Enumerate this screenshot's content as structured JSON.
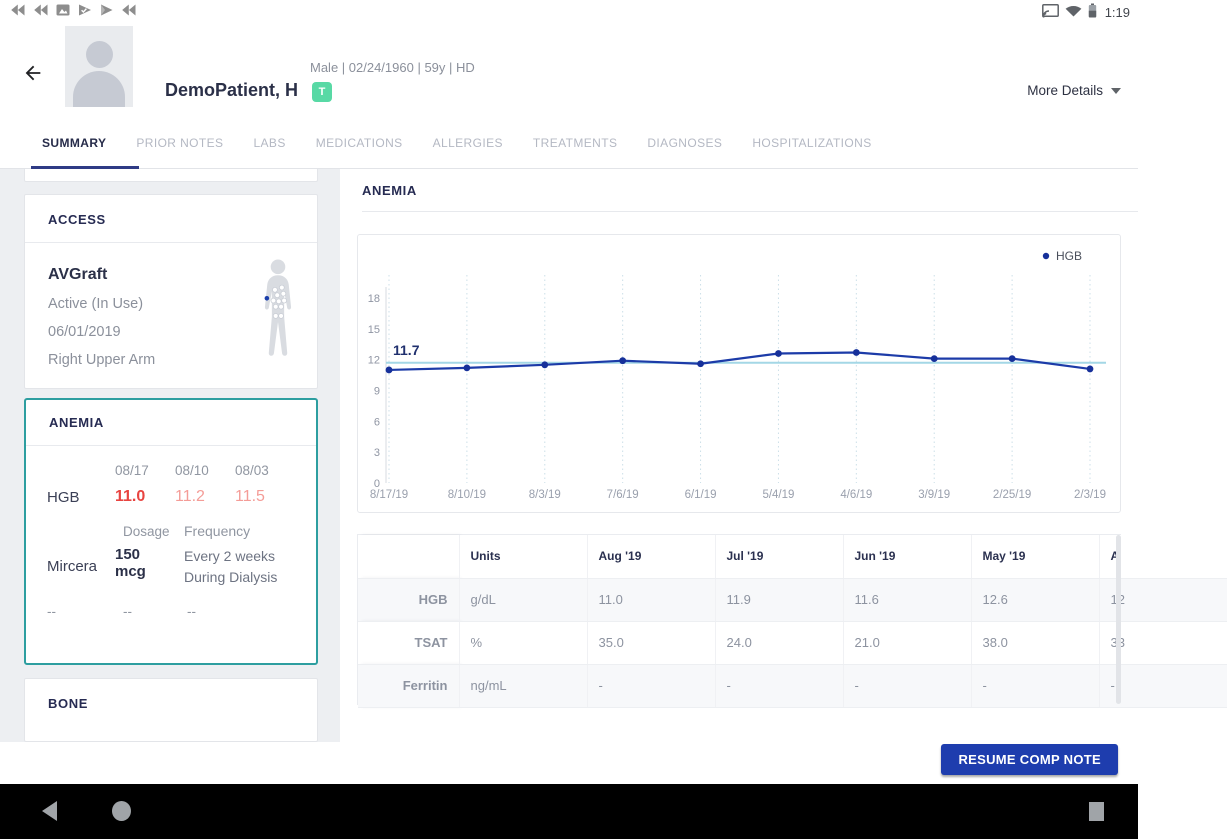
{
  "status_bar": {
    "time": "1:19",
    "left_icons": [
      "rewind-icon",
      "rewind-icon",
      "image-icon",
      "play-check-icon",
      "play-icon",
      "rewind-icon"
    ],
    "right_icons": [
      "cast-icon",
      "wifi-icon",
      "battery-icon"
    ]
  },
  "header": {
    "patient_name": "DemoPatient, H",
    "demographics": "Male | 02/24/1960 | 59y  | HD",
    "badge": "T",
    "more_details_label": "More Details"
  },
  "tabs": [
    "SUMMARY",
    "PRIOR NOTES",
    "LABS",
    "MEDICATIONS",
    "ALLERGIES",
    "TREATMENTS",
    "DIAGNOSES",
    "HOSPITALIZATIONS"
  ],
  "active_tab": "SUMMARY",
  "sidebar": {
    "access": {
      "title": "ACCESS",
      "type": "AVGraft",
      "status": "Active (In Use)",
      "date": "06/01/2019",
      "location": "Right Upper Arm"
    },
    "anemia": {
      "title": "ANEMIA",
      "dates": [
        "08/17",
        "08/10",
        "08/03"
      ],
      "hgb_label": "HGB",
      "hgb_values": [
        "11.0",
        "11.2",
        "11.5"
      ],
      "dosage_label": "Dosage",
      "frequency_label": "Frequency",
      "med_name": "Mircera",
      "med_dosage": "150 mcg",
      "med_frequency": "Every 2 weeks During Dialysis",
      "empty_row": [
        "--",
        "--",
        "--"
      ]
    },
    "bone": {
      "title": "BONE"
    }
  },
  "main": {
    "section_title": "ANEMIA",
    "table": {
      "columns": [
        "",
        "Units",
        "Aug '19",
        "Jul '19",
        "Jun '19",
        "May '19",
        "A"
      ],
      "rows": [
        {
          "label": "HGB",
          "units": "g/dL",
          "values": [
            "11.0",
            "11.9",
            "11.6",
            "12.6",
            "12"
          ],
          "red_flags": [
            true,
            true,
            true,
            false,
            false
          ]
        },
        {
          "label": "TSAT",
          "units": "%",
          "values": [
            "35.0",
            "24.0",
            "21.0",
            "38.0",
            "33"
          ],
          "red_flags": [
            false,
            false,
            false,
            false,
            false
          ]
        },
        {
          "label": "Ferritin",
          "units": "ng/mL",
          "values": [
            "-",
            "-",
            "-",
            "-",
            "-"
          ],
          "red_flags": [
            false,
            false,
            false,
            false,
            false
          ]
        }
      ]
    },
    "resume_button_label": "RESUME COMP NOTE"
  },
  "chart_data": {
    "type": "line",
    "title": "",
    "legend": [
      "HGB"
    ],
    "legend_position": "top-right",
    "x": [
      "8/17/19",
      "8/10/19",
      "8/3/19",
      "7/6/19",
      "6/1/19",
      "5/4/19",
      "4/6/19",
      "3/9/19",
      "2/25/19",
      "2/3/19"
    ],
    "series": [
      {
        "name": "HGB",
        "values": [
          11.0,
          11.2,
          11.5,
          11.9,
          11.6,
          12.6,
          12.7,
          12.1,
          12.1,
          11.1
        ]
      }
    ],
    "reference_line": {
      "value": 11.7,
      "label": "11.7"
    },
    "ylim": [
      0,
      18
    ],
    "yticks": [
      0,
      3,
      6,
      9,
      12,
      15,
      18
    ],
    "grid": "vertical-dotted",
    "line_color": "#1c3ba8",
    "point_color": "#16309a",
    "ref_color": "#a4d7e6",
    "ref_label_color": "#20306e"
  },
  "colors": {
    "accent_teal": "#2d9ea0",
    "button_blue": "#1e3dae",
    "alert_red": "#e84440",
    "alert_red_light": "#f49c97",
    "badge_green": "#58d9a5",
    "tab_underline": "#2f3b85"
  },
  "nav_bar": {
    "items": [
      "back",
      "home",
      "recents"
    ]
  }
}
